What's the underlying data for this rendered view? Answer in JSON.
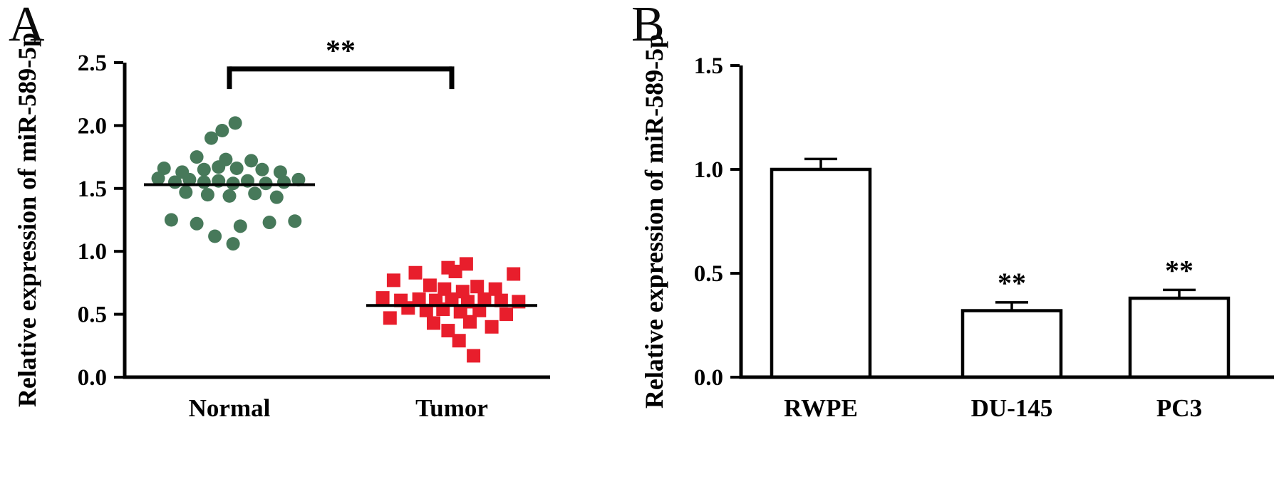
{
  "figure": {
    "background": "#ffffff",
    "text_color": "#000000"
  },
  "panels": {
    "a": {
      "label": "A"
    },
    "b": {
      "label": "B"
    }
  },
  "chart_data": [
    {
      "id": "chart-a",
      "type": "scatter",
      "title": "",
      "xlabel": "",
      "ylabel": "Relative expression of miR-589-5p",
      "ylim": [
        0.0,
        2.5
      ],
      "yticks": [
        "0.0",
        "0.5",
        "1.0",
        "1.5",
        "2.0",
        "2.5"
      ],
      "categories": [
        "Normal",
        "Tumor"
      ],
      "significance": {
        "label": "**",
        "bar_y": 2.45,
        "cap_drop": 0.16,
        "from": 0,
        "to": 1
      },
      "series": [
        {
          "name": "Normal",
          "marker": "circle",
          "color": "#47795a",
          "mean": 1.53,
          "points": [
            [
              0.08,
              2.02
            ],
            [
              -0.1,
              1.96
            ],
            [
              -0.25,
              1.9
            ],
            [
              -0.45,
              1.75
            ],
            [
              -0.05,
              1.73
            ],
            [
              0.3,
              1.72
            ],
            [
              -0.9,
              1.66
            ],
            [
              -0.65,
              1.63
            ],
            [
              -0.35,
              1.65
            ],
            [
              -0.15,
              1.67
            ],
            [
              0.1,
              1.66
            ],
            [
              0.45,
              1.65
            ],
            [
              0.7,
              1.63
            ],
            [
              -0.98,
              1.58
            ],
            [
              -0.75,
              1.55
            ],
            [
              -0.55,
              1.57
            ],
            [
              -0.35,
              1.55
            ],
            [
              -0.15,
              1.56
            ],
            [
              0.05,
              1.54
            ],
            [
              0.25,
              1.56
            ],
            [
              0.5,
              1.54
            ],
            [
              0.75,
              1.55
            ],
            [
              0.95,
              1.57
            ],
            [
              -0.6,
              1.47
            ],
            [
              -0.3,
              1.45
            ],
            [
              0.0,
              1.44
            ],
            [
              0.35,
              1.46
            ],
            [
              0.65,
              1.43
            ],
            [
              -0.8,
              1.25
            ],
            [
              -0.45,
              1.22
            ],
            [
              0.15,
              1.2
            ],
            [
              0.55,
              1.23
            ],
            [
              0.9,
              1.24
            ],
            [
              -0.2,
              1.12
            ],
            [
              0.05,
              1.06
            ]
          ]
        },
        {
          "name": "Tumor",
          "marker": "square",
          "color": "#e81e2c",
          "mean": 0.57,
          "points": [
            [
              0.2,
              0.9
            ],
            [
              -0.05,
              0.87
            ],
            [
              0.05,
              0.84
            ],
            [
              -0.5,
              0.83
            ],
            [
              0.85,
              0.82
            ],
            [
              -0.8,
              0.77
            ],
            [
              -0.3,
              0.73
            ],
            [
              0.35,
              0.72
            ],
            [
              0.6,
              0.7
            ],
            [
              -0.1,
              0.7
            ],
            [
              0.15,
              0.68
            ],
            [
              -0.95,
              0.63
            ],
            [
              -0.7,
              0.61
            ],
            [
              -0.45,
              0.62
            ],
            [
              -0.22,
              0.61
            ],
            [
              0.0,
              0.62
            ],
            [
              0.22,
              0.6
            ],
            [
              0.45,
              0.62
            ],
            [
              0.68,
              0.61
            ],
            [
              0.92,
              0.6
            ],
            [
              -0.6,
              0.55
            ],
            [
              -0.35,
              0.53
            ],
            [
              -0.12,
              0.54
            ],
            [
              0.12,
              0.52
            ],
            [
              0.38,
              0.53
            ],
            [
              0.75,
              0.5
            ],
            [
              -0.85,
              0.47
            ],
            [
              -0.25,
              0.43
            ],
            [
              0.25,
              0.44
            ],
            [
              0.55,
              0.4
            ],
            [
              -0.05,
              0.37
            ],
            [
              0.1,
              0.29
            ],
            [
              0.3,
              0.17
            ]
          ]
        }
      ]
    },
    {
      "id": "chart-b",
      "type": "bar",
      "title": "",
      "xlabel": "",
      "ylabel": "Relative expression of miR-589-5p",
      "ylim": [
        0.0,
        1.5
      ],
      "yticks": [
        "0.0",
        "0.5",
        "1.0",
        "1.5"
      ],
      "categories": [
        "RWPE",
        "DU-145",
        "PC3"
      ],
      "values": [
        1.0,
        0.32,
        0.38
      ],
      "errors": [
        0.05,
        0.04,
        0.04
      ],
      "annotations": [
        "",
        "**",
        "**"
      ],
      "bar_fill": "#ffffff",
      "bar_stroke": "#000000"
    }
  ]
}
